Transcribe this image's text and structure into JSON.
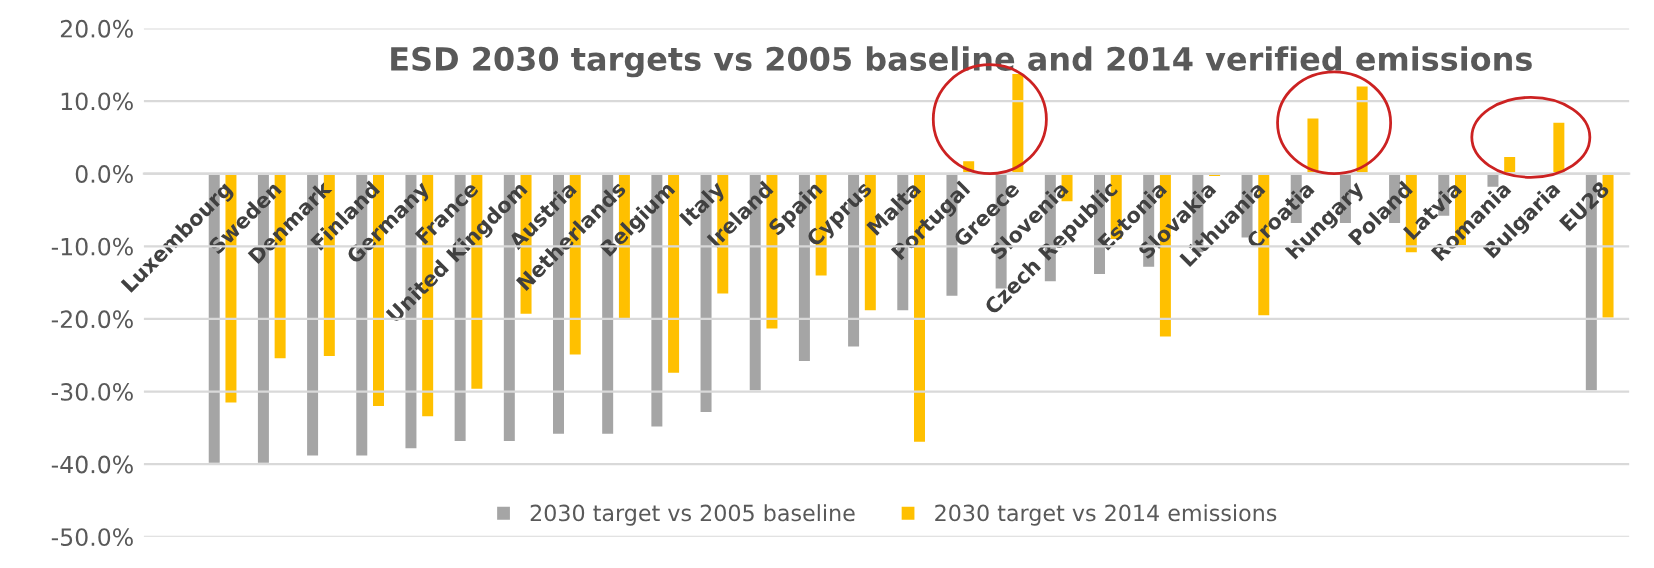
{
  "chart_data": {
    "type": "bar",
    "title": "ESD 2030 targets vs 2005 baseline and 2014 verified emissions",
    "categories": [
      "Luxembourg",
      "Sweden",
      "Denmark",
      "Finland",
      "Germany",
      "France",
      "United Kingdom",
      "Austria",
      "Netherlands",
      "Belgium",
      "Italy",
      "Ireland",
      "Spain",
      "Cyprus",
      "Malta",
      "Portugal",
      "Greece",
      "Slovenia",
      "Czech Republic",
      "Estonia",
      "Slovakia",
      "Lithuania",
      "Croatia",
      "Hungary",
      "Poland",
      "Latvia",
      "Romania",
      "Bulgaria",
      "EU28"
    ],
    "series": [
      {
        "name": "2030 target vs 2005 baseline",
        "color": "#a5a5a5",
        "values": [
          -40,
          -40,
          -39,
          -39,
          -38,
          -37,
          -37,
          -36,
          -36,
          -35,
          -33,
          -30,
          -26,
          -24,
          -19,
          -17,
          -16,
          -15,
          -14,
          -13,
          -11,
          -9,
          -7,
          -7,
          -7,
          -6,
          -2,
          null,
          -30
        ]
      },
      {
        "name": "2030 target vs 2014 emissions",
        "color": "#ffc000",
        "values": [
          -31.7,
          -25.6,
          -25.3,
          -32.2,
          -33.6,
          -29.8,
          -19.5,
          -25.1,
          -20.2,
          -27.6,
          -16.7,
          -21.5,
          -14.2,
          -19.0,
          -37.1,
          1.9,
          13.9,
          -4.0,
          -9.2,
          -22.6,
          -0.5,
          -19.7,
          7.8,
          12.2,
          -11.0,
          -10.0,
          2.5,
          7.2,
          -20.0
        ]
      }
    ],
    "ylim": [
      -50,
      20
    ],
    "yticks": [
      {
        "value": -50,
        "label": "-50.0%"
      },
      {
        "value": -40,
        "label": "-40.0%"
      },
      {
        "value": -30,
        "label": "-30.0%"
      },
      {
        "value": -20,
        "label": "-20.0%"
      },
      {
        "value": -10,
        "label": "-10.0%"
      },
      {
        "value": 0,
        "label": "0.0%"
      },
      {
        "value": 10,
        "label": "10.0%"
      },
      {
        "value": 20,
        "label": "20.0%"
      }
    ],
    "grid": "y",
    "legend": "bottom"
  }
}
